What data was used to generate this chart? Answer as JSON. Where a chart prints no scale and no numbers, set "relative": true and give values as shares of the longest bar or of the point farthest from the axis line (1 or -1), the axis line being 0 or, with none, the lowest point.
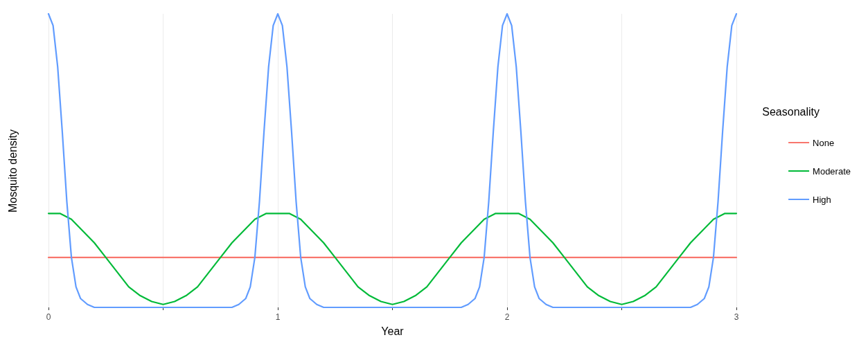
{
  "chart_data": {
    "type": "line",
    "xlabel": "Year",
    "ylabel": "Mosquito density",
    "legend_title": "Seasonality",
    "relative": true,
    "xlim": [
      0,
      3
    ],
    "xticks": [
      0,
      {
        "value": 0.5,
        "label": null
      },
      1,
      {
        "value": 1.5,
        "label": null
      },
      2,
      {
        "value": 2.5,
        "label": null
      },
      3
    ],
    "grid": "x",
    "legend": "right",
    "marker": "none",
    "line_style": "solid",
    "series": [
      {
        "name": "None",
        "color": "#f8766d",
        "x": [
          0,
          3
        ],
        "values": [
          0.17,
          0.17
        ]
      },
      {
        "name": "Moderate",
        "color": "#00ba38",
        "x": [
          0,
          0.05,
          0.1,
          0.15,
          0.2,
          0.25,
          0.3,
          0.35,
          0.4,
          0.45,
          0.5,
          0.55,
          0.6,
          0.65,
          0.7,
          0.75,
          0.8,
          0.85,
          0.9,
          0.95,
          1,
          1.05,
          1.1,
          1.15,
          1.2,
          1.25,
          1.3,
          1.35,
          1.4,
          1.45,
          1.5,
          1.55,
          1.6,
          1.65,
          1.7,
          1.75,
          1.8,
          1.85,
          1.9,
          1.95,
          2,
          2.05,
          2.1,
          2.15,
          2.2,
          2.25,
          2.3,
          2.35,
          2.4,
          2.45,
          2.5,
          2.55,
          2.6,
          2.65,
          2.7,
          2.75,
          2.8,
          2.85,
          2.9,
          2.95,
          3
        ],
        "values": [
          0.32,
          0.32,
          0.3,
          0.26,
          0.22,
          0.17,
          0.12,
          0.07,
          0.04,
          0.02,
          0.01,
          0.02,
          0.04,
          0.07,
          0.12,
          0.17,
          0.22,
          0.26,
          0.3,
          0.32,
          0.32,
          0.32,
          0.3,
          0.26,
          0.22,
          0.17,
          0.12,
          0.07,
          0.04,
          0.02,
          0.01,
          0.02,
          0.04,
          0.07,
          0.12,
          0.17,
          0.22,
          0.26,
          0.3,
          0.32,
          0.32,
          0.32,
          0.3,
          0.26,
          0.22,
          0.17,
          0.12,
          0.07,
          0.04,
          0.02,
          0.01,
          0.02,
          0.04,
          0.07,
          0.12,
          0.17,
          0.22,
          0.26,
          0.3,
          0.32,
          0.32
        ]
      },
      {
        "name": "High",
        "color": "#619cff",
        "x": [
          0,
          0.02,
          0.04,
          0.06,
          0.08,
          0.1,
          0.12,
          0.14,
          0.17,
          0.2,
          0.8,
          0.83,
          0.86,
          0.88,
          0.9,
          0.92,
          0.94,
          0.96,
          0.98,
          1,
          1.02,
          1.04,
          1.06,
          1.08,
          1.1,
          1.12,
          1.14,
          1.17,
          1.2,
          1.8,
          1.83,
          1.86,
          1.88,
          1.9,
          1.92,
          1.94,
          1.96,
          1.98,
          2,
          2.02,
          2.04,
          2.06,
          2.08,
          2.1,
          2.12,
          2.14,
          2.17,
          2.2,
          2.8,
          2.83,
          2.86,
          2.88,
          2.9,
          2.92,
          2.94,
          2.96,
          2.98,
          3
        ],
        "values": [
          1,
          0.96,
          0.82,
          0.6,
          0.36,
          0.17,
          0.07,
          0.03,
          0.01,
          0,
          0,
          0.01,
          0.03,
          0.07,
          0.17,
          0.36,
          0.6,
          0.82,
          0.96,
          1,
          0.96,
          0.82,
          0.6,
          0.36,
          0.17,
          0.07,
          0.03,
          0.01,
          0,
          0,
          0.01,
          0.03,
          0.07,
          0.17,
          0.36,
          0.6,
          0.82,
          0.96,
          1,
          0.96,
          0.82,
          0.6,
          0.36,
          0.17,
          0.07,
          0.03,
          0.01,
          0,
          0,
          0.01,
          0.03,
          0.07,
          0.17,
          0.36,
          0.6,
          0.82,
          0.96,
          1
        ]
      }
    ]
  }
}
